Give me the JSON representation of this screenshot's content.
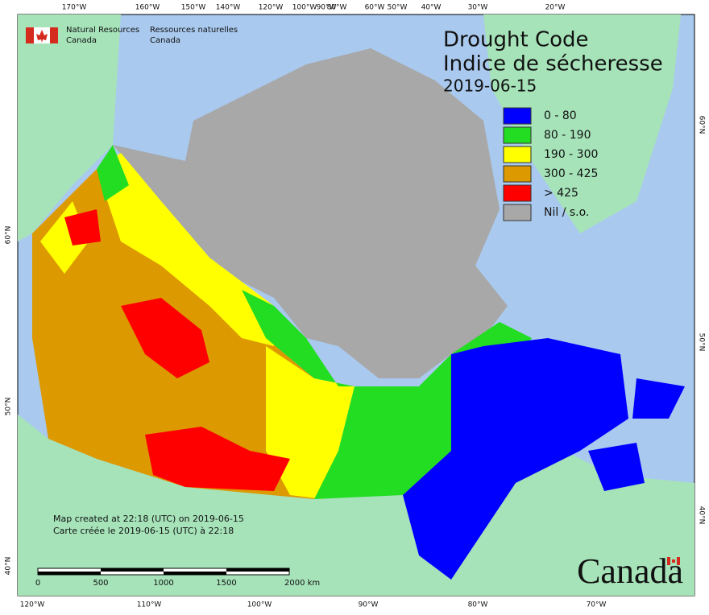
{
  "header": {
    "agency_en": [
      "Natural Resources",
      "Canada"
    ],
    "agency_fr": [
      "Ressources naturelles",
      "Canada"
    ]
  },
  "title": {
    "en": "Drought Code",
    "fr": "Indice de sécheresse",
    "date": "2019-06-15"
  },
  "legend": [
    {
      "label": "0 - 80",
      "color": "#0000ff"
    },
    {
      "label": "80 - 190",
      "color": "#22dd22"
    },
    {
      "label": "190 - 300",
      "color": "#ffff00"
    },
    {
      "label": "300 - 425",
      "color": "#dd9900"
    },
    {
      "label": "> 425",
      "color": "#ff0000"
    },
    {
      "label": "Nil / s.o.",
      "color": "#a8a8a8"
    }
  ],
  "top_labels": [
    "170°W",
    "160°W",
    "150°W",
    "140°W",
    "120°W",
    "100°W",
    "90°W",
    "80°W",
    "60°W",
    "50°W",
    "40°W",
    "30°W",
    "20°W"
  ],
  "bottom_labels": [
    "120°W",
    "110°W",
    "100°W",
    "90°W",
    "80°W",
    "70°W"
  ],
  "left_labels": [
    "60°N",
    "50°N",
    "40°N"
  ],
  "right_labels": [
    "60°N",
    "50°N",
    "40°N"
  ],
  "notes": [
    "Map created at 22:18 (UTC) on 2019-06-15",
    "Carte créée le 2019-06-15 (UTC) à 22:18"
  ],
  "scale": [
    "0",
    "500",
    "1000",
    "1500",
    "2000 km"
  ],
  "wordmark": "Canada"
}
